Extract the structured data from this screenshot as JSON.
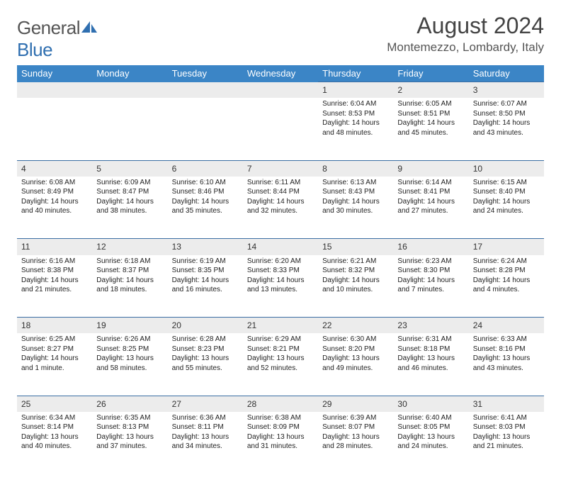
{
  "brand": {
    "part1": "General",
    "part2": "Blue"
  },
  "title": "August 2024",
  "location": "Montemezzo, Lombardy, Italy",
  "header_bg": "#3b85c6",
  "daynum_bg": "#ececec",
  "border_color": "#3b6ea3",
  "weekdays": [
    "Sunday",
    "Monday",
    "Tuesday",
    "Wednesday",
    "Thursday",
    "Friday",
    "Saturday"
  ],
  "weeks": [
    [
      null,
      null,
      null,
      null,
      {
        "n": "1",
        "sr": "6:04 AM",
        "ss": "8:53 PM",
        "dl": "14 hours and 48 minutes."
      },
      {
        "n": "2",
        "sr": "6:05 AM",
        "ss": "8:51 PM",
        "dl": "14 hours and 45 minutes."
      },
      {
        "n": "3",
        "sr": "6:07 AM",
        "ss": "8:50 PM",
        "dl": "14 hours and 43 minutes."
      }
    ],
    [
      {
        "n": "4",
        "sr": "6:08 AM",
        "ss": "8:49 PM",
        "dl": "14 hours and 40 minutes."
      },
      {
        "n": "5",
        "sr": "6:09 AM",
        "ss": "8:47 PM",
        "dl": "14 hours and 38 minutes."
      },
      {
        "n": "6",
        "sr": "6:10 AM",
        "ss": "8:46 PM",
        "dl": "14 hours and 35 minutes."
      },
      {
        "n": "7",
        "sr": "6:11 AM",
        "ss": "8:44 PM",
        "dl": "14 hours and 32 minutes."
      },
      {
        "n": "8",
        "sr": "6:13 AM",
        "ss": "8:43 PM",
        "dl": "14 hours and 30 minutes."
      },
      {
        "n": "9",
        "sr": "6:14 AM",
        "ss": "8:41 PM",
        "dl": "14 hours and 27 minutes."
      },
      {
        "n": "10",
        "sr": "6:15 AM",
        "ss": "8:40 PM",
        "dl": "14 hours and 24 minutes."
      }
    ],
    [
      {
        "n": "11",
        "sr": "6:16 AM",
        "ss": "8:38 PM",
        "dl": "14 hours and 21 minutes."
      },
      {
        "n": "12",
        "sr": "6:18 AM",
        "ss": "8:37 PM",
        "dl": "14 hours and 18 minutes."
      },
      {
        "n": "13",
        "sr": "6:19 AM",
        "ss": "8:35 PM",
        "dl": "14 hours and 16 minutes."
      },
      {
        "n": "14",
        "sr": "6:20 AM",
        "ss": "8:33 PM",
        "dl": "14 hours and 13 minutes."
      },
      {
        "n": "15",
        "sr": "6:21 AM",
        "ss": "8:32 PM",
        "dl": "14 hours and 10 minutes."
      },
      {
        "n": "16",
        "sr": "6:23 AM",
        "ss": "8:30 PM",
        "dl": "14 hours and 7 minutes."
      },
      {
        "n": "17",
        "sr": "6:24 AM",
        "ss": "8:28 PM",
        "dl": "14 hours and 4 minutes."
      }
    ],
    [
      {
        "n": "18",
        "sr": "6:25 AM",
        "ss": "8:27 PM",
        "dl": "14 hours and 1 minute."
      },
      {
        "n": "19",
        "sr": "6:26 AM",
        "ss": "8:25 PM",
        "dl": "13 hours and 58 minutes."
      },
      {
        "n": "20",
        "sr": "6:28 AM",
        "ss": "8:23 PM",
        "dl": "13 hours and 55 minutes."
      },
      {
        "n": "21",
        "sr": "6:29 AM",
        "ss": "8:21 PM",
        "dl": "13 hours and 52 minutes."
      },
      {
        "n": "22",
        "sr": "6:30 AM",
        "ss": "8:20 PM",
        "dl": "13 hours and 49 minutes."
      },
      {
        "n": "23",
        "sr": "6:31 AM",
        "ss": "8:18 PM",
        "dl": "13 hours and 46 minutes."
      },
      {
        "n": "24",
        "sr": "6:33 AM",
        "ss": "8:16 PM",
        "dl": "13 hours and 43 minutes."
      }
    ],
    [
      {
        "n": "25",
        "sr": "6:34 AM",
        "ss": "8:14 PM",
        "dl": "13 hours and 40 minutes."
      },
      {
        "n": "26",
        "sr": "6:35 AM",
        "ss": "8:13 PM",
        "dl": "13 hours and 37 minutes."
      },
      {
        "n": "27",
        "sr": "6:36 AM",
        "ss": "8:11 PM",
        "dl": "13 hours and 34 minutes."
      },
      {
        "n": "28",
        "sr": "6:38 AM",
        "ss": "8:09 PM",
        "dl": "13 hours and 31 minutes."
      },
      {
        "n": "29",
        "sr": "6:39 AM",
        "ss": "8:07 PM",
        "dl": "13 hours and 28 minutes."
      },
      {
        "n": "30",
        "sr": "6:40 AM",
        "ss": "8:05 PM",
        "dl": "13 hours and 24 minutes."
      },
      {
        "n": "31",
        "sr": "6:41 AM",
        "ss": "8:03 PM",
        "dl": "13 hours and 21 minutes."
      }
    ]
  ]
}
